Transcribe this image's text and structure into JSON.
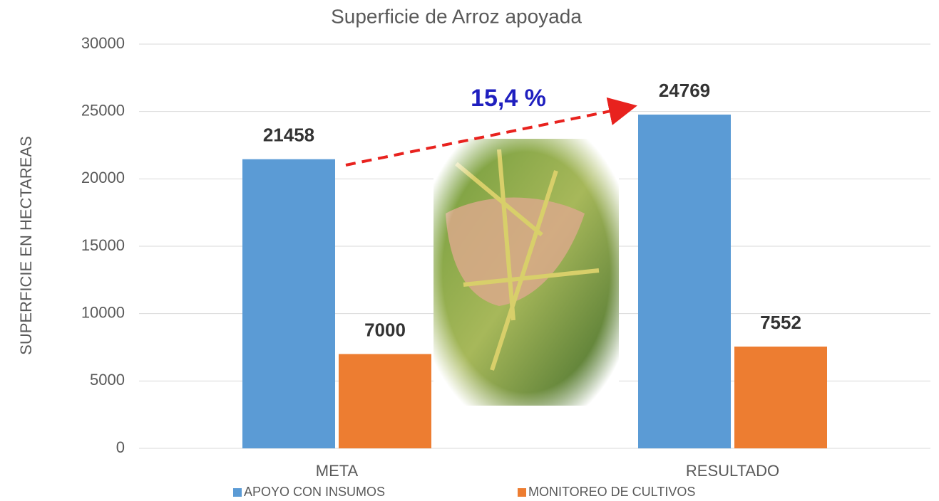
{
  "chart_data": {
    "type": "bar",
    "title": "Superficie de Arroz apoyada",
    "ylabel": "SUPERFICIE EN HECTAREAS",
    "categories": [
      "META",
      "RESULTADO"
    ],
    "series": [
      {
        "name": "APOYO CON INSUMOS",
        "color": "#5b9bd5",
        "values": [
          21458,
          24769
        ]
      },
      {
        "name": "MONITOREO DE CULTIVOS",
        "color": "#ed7d31",
        "values": [
          7000,
          7552
        ]
      }
    ],
    "ylim": [
      0,
      30000
    ],
    "yticks": [
      0,
      5000,
      10000,
      15000,
      20000,
      25000,
      30000
    ],
    "grid": true,
    "legend": "bottom",
    "annotations": [
      "15,4 %"
    ]
  }
}
